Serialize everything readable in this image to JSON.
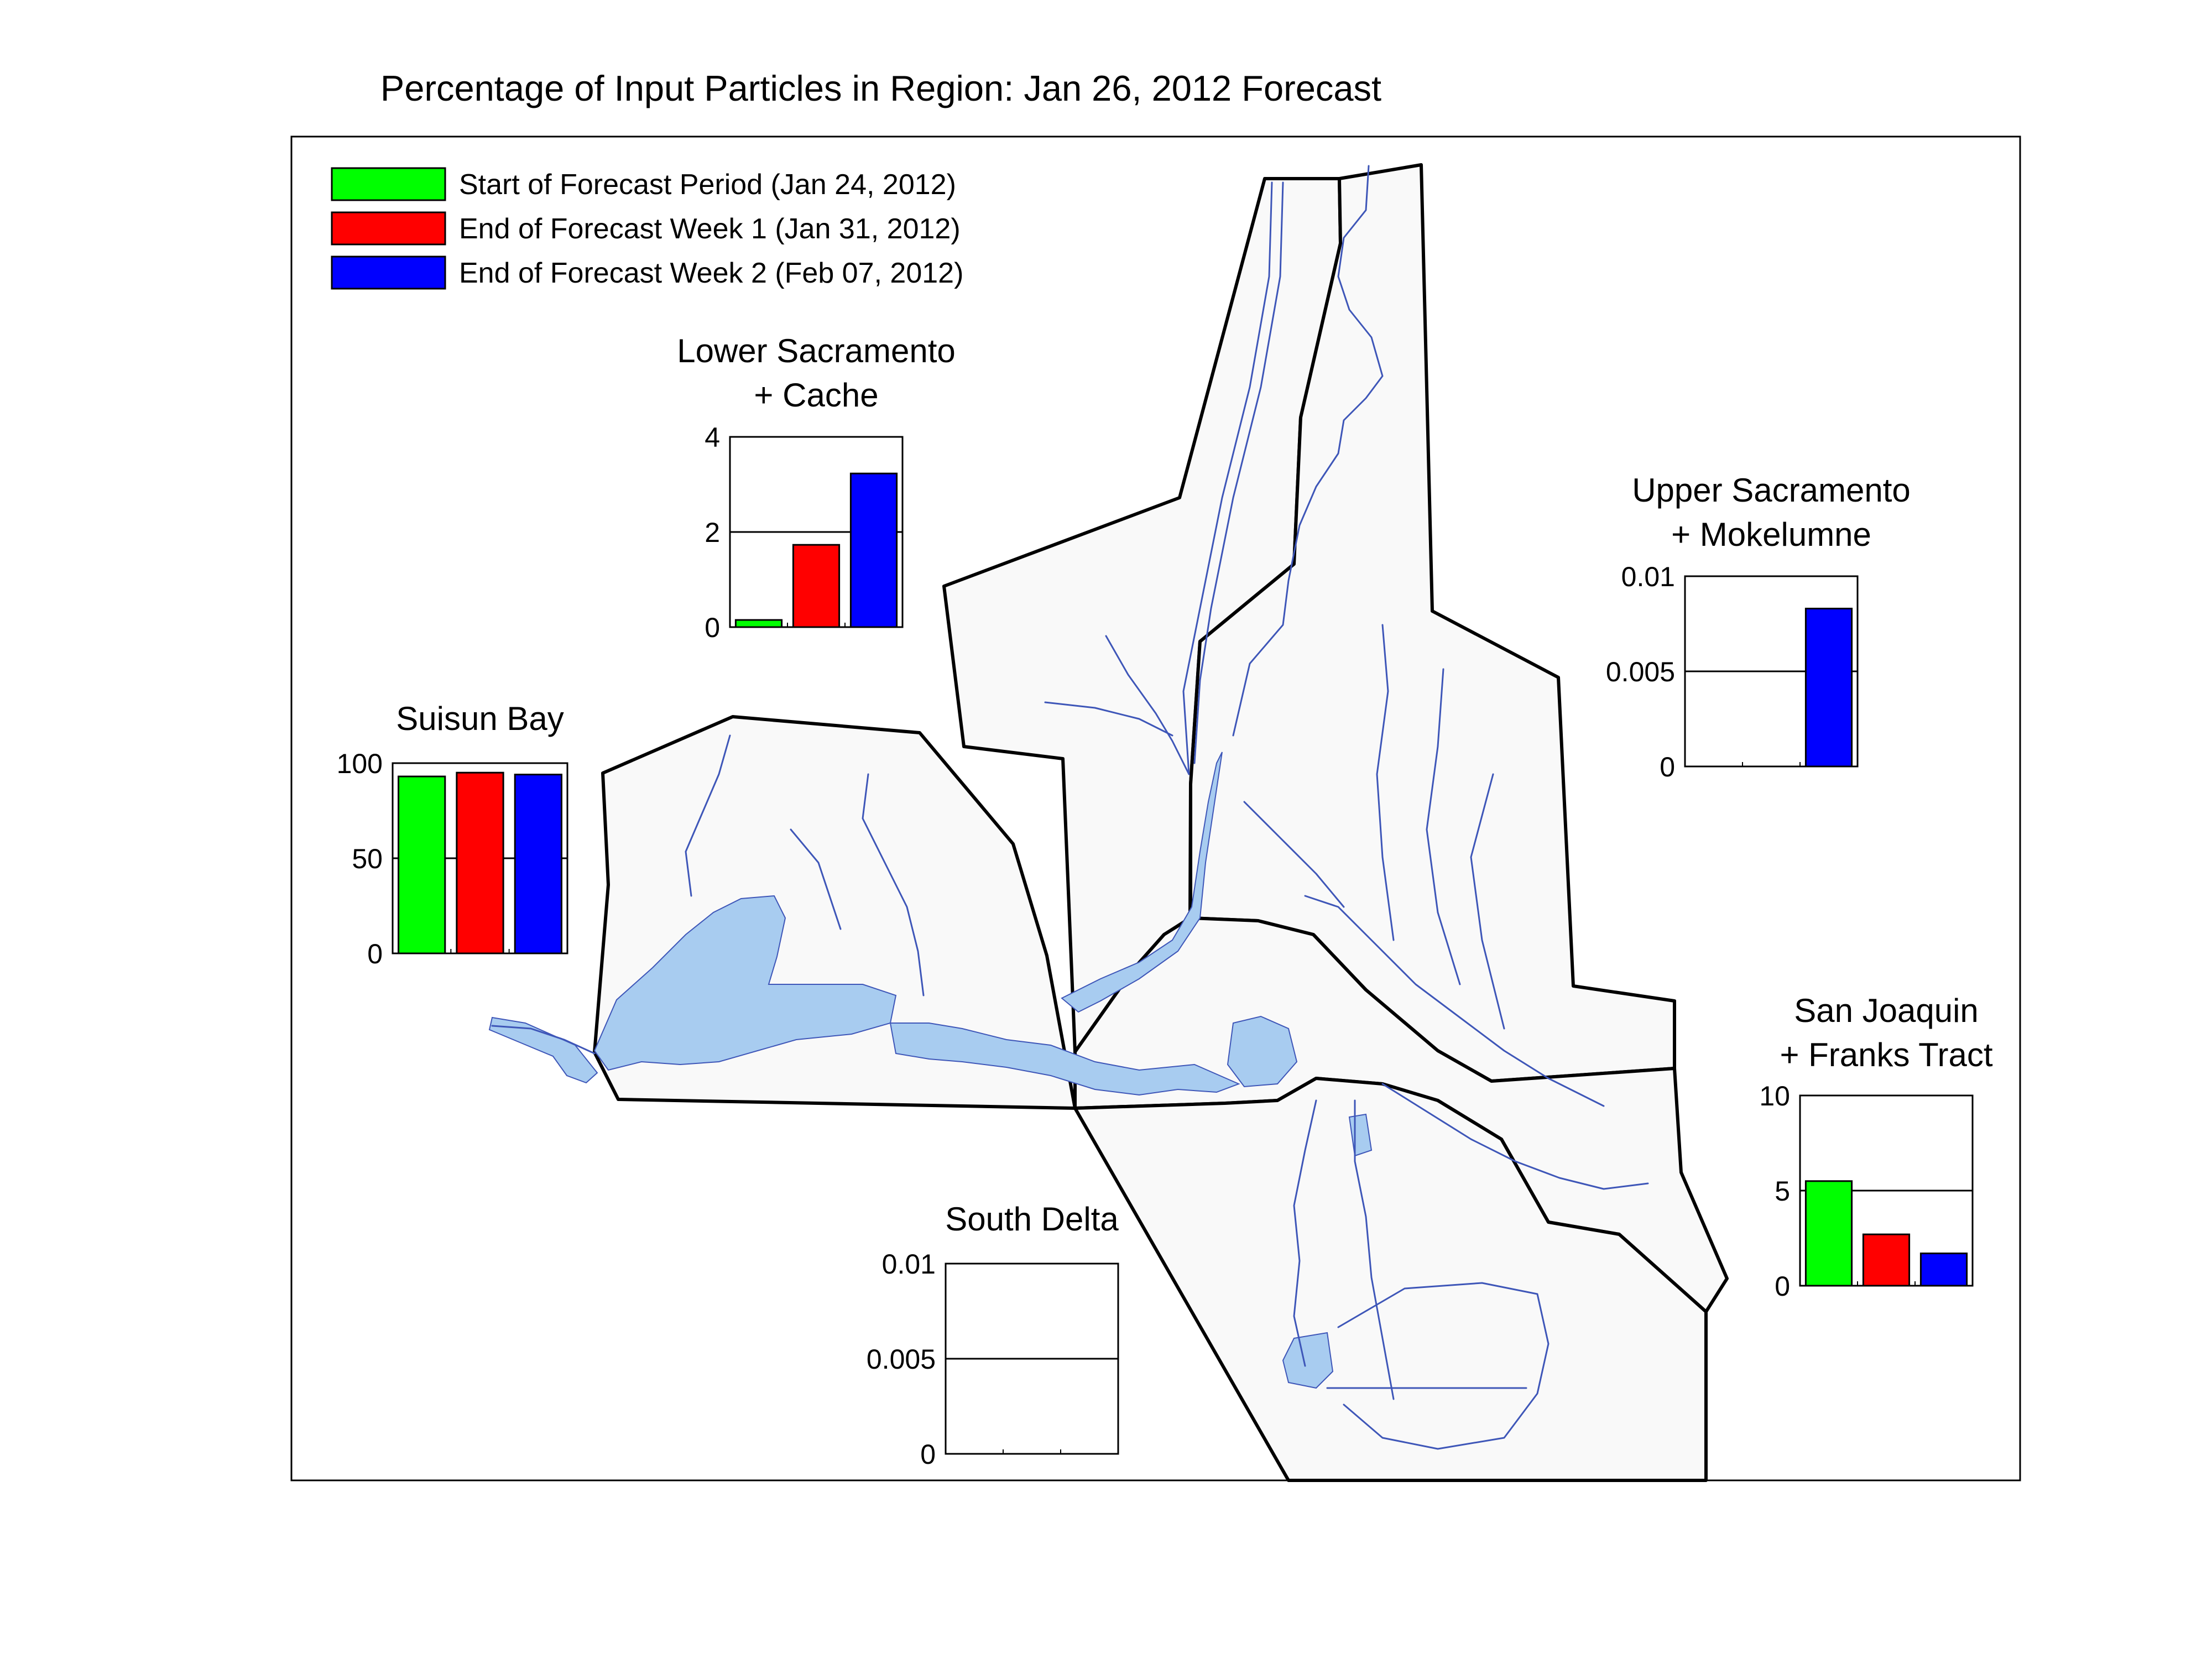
{
  "title": "Percentage of Input Particles in Region: Jan 26, 2012 Forecast",
  "colors": {
    "start": "#00ff00",
    "week1": "#ff0000",
    "week2": "#0000ff",
    "water": "#a8ccf0",
    "channel": "#3e56b8",
    "region_fill": "#f9f9f9"
  },
  "legend": [
    {
      "label": "Start of Forecast Period (Jan 24, 2012)",
      "color": "#00ff00"
    },
    {
      "label": "End of Forecast Week 1 (Jan 31, 2012)",
      "color": "#ff0000"
    },
    {
      "label": "End of Forecast Week 2 (Feb 07, 2012)",
      "color": "#0000ff"
    }
  ],
  "chart_data": [
    {
      "type": "bar",
      "title_lines": [
        "Suisun Bay"
      ],
      "categories": [
        "Start of Forecast Period (Jan 24, 2012)",
        "End of Forecast Week 1 (Jan 31, 2012)",
        "End of Forecast Week 2 (Feb 07, 2012)"
      ],
      "values": [
        93,
        95,
        94
      ],
      "ylim": [
        0,
        100
      ],
      "yticks": [
        "0",
        "50",
        "100"
      ]
    },
    {
      "type": "bar",
      "title_lines": [
        "Lower Sacramento",
        "+ Cache"
      ],
      "categories": [
        "Start of Forecast Period (Jan 24, 2012)",
        "End of Forecast Week 1 (Jan 31, 2012)",
        "End of Forecast Week 2 (Feb 07, 2012)"
      ],
      "values": [
        0.15,
        1.73,
        3.23
      ],
      "ylim": [
        0,
        4
      ],
      "yticks": [
        "0",
        "2",
        "4"
      ]
    },
    {
      "type": "bar",
      "title_lines": [
        "Upper Sacramento",
        "+ Mokelumne"
      ],
      "categories": [
        "Start of Forecast Period (Jan 24, 2012)",
        "End of Forecast Week 1 (Jan 31, 2012)",
        "End of Forecast Week 2 (Feb 07, 2012)"
      ],
      "values": [
        0,
        0,
        0.0083
      ],
      "ylim": [
        0,
        0.01
      ],
      "yticks": [
        "0",
        "0.005",
        "0.01"
      ]
    },
    {
      "type": "bar",
      "title_lines": [
        "San Joaquin",
        "+ Franks Tract"
      ],
      "categories": [
        "Start of Forecast Period (Jan 24, 2012)",
        "End of Forecast Week 1 (Jan 31, 2012)",
        "End of Forecast Week 2 (Feb 07, 2012)"
      ],
      "values": [
        5.5,
        2.7,
        1.7
      ],
      "ylim": [
        0,
        10
      ],
      "yticks": [
        "0",
        "5",
        "10"
      ]
    },
    {
      "type": "bar",
      "title_lines": [
        "South Delta"
      ],
      "categories": [
        "Start of Forecast Period (Jan 24, 2012)",
        "End of Forecast Week 1 (Jan 31, 2012)",
        "End of Forecast Week 2 (Feb 07, 2012)"
      ],
      "values": [
        0,
        0,
        0
      ],
      "ylim": [
        0,
        0.01
      ],
      "yticks": [
        "0",
        "0.005",
        "0.01"
      ]
    }
  ]
}
